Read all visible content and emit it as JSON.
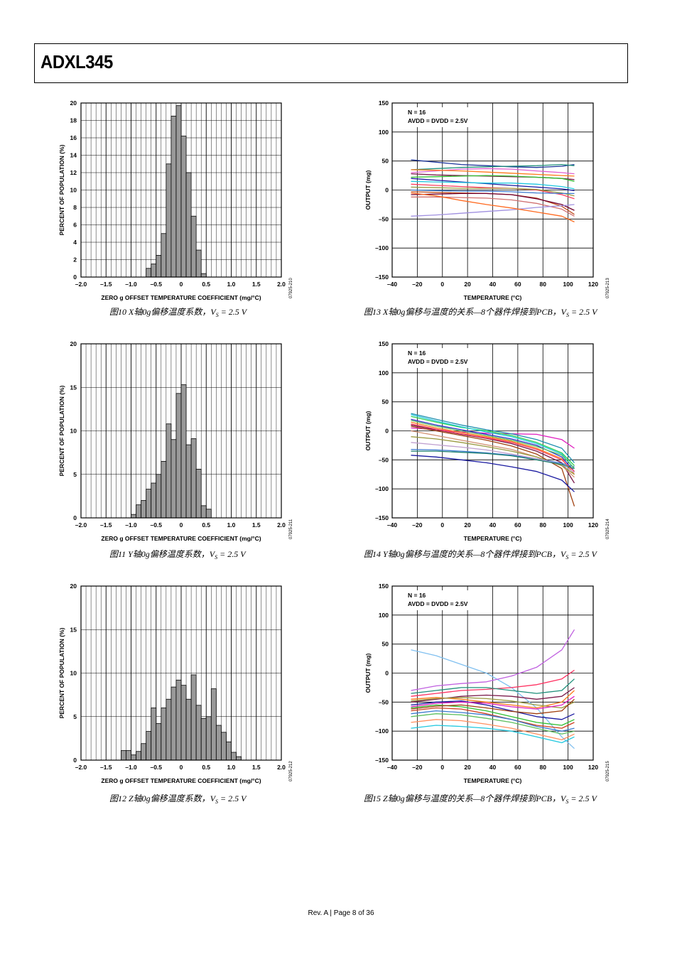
{
  "header": {
    "title": "ADXL345"
  },
  "footer": {
    "text": "Rev. A | Page 8 of 36"
  },
  "histograms": [
    {
      "id": "fig10",
      "caption_main": "图10 X轴0g偏移温度系数，",
      "caption_v": "V",
      "caption_sub": "S",
      "caption_tail": " = 2.5 V",
      "figure_id": "07925-210",
      "chart_data": {
        "type": "bar",
        "title": "",
        "xlabel": "ZERO g OFFSET TEMPERATURE COEFFICIENT (mg/°C)",
        "ylabel": "PERCENT OF POPULATION (%)",
        "xlim": [
          -2.0,
          2.0
        ],
        "ylim": [
          0,
          20
        ],
        "xticks": [
          "–2.0",
          "–1.5",
          "–1.0",
          "–0.5",
          "0",
          "0.5",
          "1.0",
          "1.5",
          "2.0"
        ],
        "yticks": [
          "0",
          "2",
          "4",
          "6",
          "8",
          "10",
          "12",
          "14",
          "16",
          "18",
          "20"
        ],
        "bin_width": 0.1,
        "bins": [
          -0.65,
          -0.55,
          -0.45,
          -0.35,
          -0.25,
          -0.15,
          -0.05,
          0.05,
          0.15,
          0.25,
          0.35,
          0.45
        ],
        "values": [
          1.0,
          1.5,
          2.5,
          5.0,
          13.0,
          18.5,
          19.7,
          16.2,
          12.0,
          7.0,
          3.1,
          0.4
        ]
      }
    },
    {
      "id": "fig11",
      "caption_main": "图11 Y轴0g偏移温度系数，",
      "caption_v": "V",
      "caption_sub": "S",
      "caption_tail": " = 2.5 V",
      "figure_id": "07925-211",
      "chart_data": {
        "type": "bar",
        "title": "",
        "xlabel": "ZERO g OFFSET TEMPERATURE COEFFICIENT (mg/°C)",
        "ylabel": "PERCENT OF POPULATION (%)",
        "xlim": [
          -2.0,
          2.0
        ],
        "ylim": [
          0,
          20
        ],
        "xticks": [
          "–2.0",
          "–1.5",
          "–1.0",
          "–0.5",
          "0",
          "0.5",
          "1.0",
          "1.5",
          "2.0"
        ],
        "yticks": [
          "0",
          "5",
          "10",
          "15",
          "20"
        ],
        "bin_width": 0.1,
        "bins": [
          -0.95,
          -0.85,
          -0.75,
          -0.65,
          -0.55,
          -0.45,
          -0.35,
          -0.25,
          -0.15,
          -0.05,
          0.05,
          0.15,
          0.25,
          0.35,
          0.45,
          0.55
        ],
        "values": [
          0.4,
          1.5,
          2.0,
          3.3,
          4.0,
          5.0,
          6.5,
          10.8,
          9.0,
          14.3,
          15.3,
          8.4,
          9.1,
          5.6,
          1.4,
          1.0
        ]
      }
    },
    {
      "id": "fig12",
      "caption_main": "图12 Z轴0g偏移温度系数，",
      "caption_v": "V",
      "caption_sub": "S",
      "caption_tail": " = 2.5 V",
      "figure_id": "07925-212",
      "chart_data": {
        "type": "bar",
        "title": "",
        "xlabel": "ZERO g OFFSET TEMPERATURE COEFFICIENT (mg/°C)",
        "ylabel": "PERCENT OF POPULATION (%)",
        "xlim": [
          -2.0,
          2.0
        ],
        "ylim": [
          0,
          20
        ],
        "xticks": [
          "–2.0",
          "–1.5",
          "–1.0",
          "–0.5",
          "0",
          "0.5",
          "1.0",
          "1.5",
          "2.0"
        ],
        "yticks": [
          "0",
          "5",
          "10",
          "15",
          "20"
        ],
        "bin_width": 0.1,
        "bins": [
          -1.15,
          -1.05,
          -0.95,
          -0.85,
          -0.75,
          -0.65,
          -0.55,
          -0.45,
          -0.35,
          -0.25,
          -0.15,
          -0.05,
          0.05,
          0.15,
          0.25,
          0.35,
          0.45,
          0.55,
          0.65,
          0.75,
          0.85,
          0.95,
          1.05,
          1.15
        ],
        "values": [
          1.1,
          1.1,
          0.6,
          1.0,
          1.9,
          3.3,
          6.0,
          4.2,
          6.0,
          7.0,
          8.4,
          9.2,
          8.6,
          7.0,
          9.8,
          6.3,
          4.8,
          5.0,
          8.2,
          4.0,
          3.2,
          2.1,
          0.9,
          0.4
        ]
      }
    }
  ],
  "linecharts": [
    {
      "id": "fig13",
      "caption_main": "图13 X轴0g偏移与温度的关系—8个器件焊接到PCB，",
      "caption_v": "V",
      "caption_sub": "S",
      "caption_tail": " = 2.5 V",
      "figure_id": "07925-213",
      "annotations": [
        "N = 16",
        "AVDD = DVDD = 2.5V"
      ],
      "chart_data": {
        "type": "line",
        "title": "",
        "xlabel": "TEMPERATURE (°C)",
        "ylabel": "OUTPUT (mg)",
        "xlim": [
          -40,
          120
        ],
        "ylim": [
          -150,
          150
        ],
        "xticks": [
          "–40",
          "–20",
          "0",
          "20",
          "40",
          "60",
          "80",
          "100",
          "120"
        ],
        "yticks": [
          "–150",
          "–100",
          "–50",
          "0",
          "50",
          "100",
          "150"
        ],
        "x": [
          -25,
          -5,
          15,
          35,
          55,
          75,
          95,
          105
        ],
        "series": [
          {
            "color": "#1a3399",
            "values": [
              52,
              48,
              44,
              42,
              40,
              39,
              41,
              44
            ]
          },
          {
            "color": "#1f8f7a",
            "values": [
              35,
              37,
              39,
              40,
              41,
              42,
              44,
              42
            ]
          },
          {
            "color": "#e060d0",
            "values": [
              30,
              33,
              36,
              37,
              36,
              33,
              30,
              28
            ]
          },
          {
            "color": "#ff7a1a",
            "values": [
              35,
              34,
              33,
              31,
              29,
              27,
              25,
              24
            ]
          },
          {
            "color": "#7a1a4a",
            "values": [
              28,
              26,
              25,
              24,
              23,
              22,
              20,
              18
            ]
          },
          {
            "color": "#30c030",
            "values": [
              22,
              23,
              24,
              25,
              24,
              22,
              20,
              15
            ]
          },
          {
            "color": "#1a1aa0",
            "values": [
              20,
              17,
              14,
              11,
              8,
              5,
              2,
              -1
            ]
          },
          {
            "color": "#20c8e0",
            "values": [
              15,
              14,
              13,
              12,
              12,
              10,
              6,
              2
            ]
          },
          {
            "color": "#ff4060",
            "values": [
              10,
              8,
              6,
              4,
              3,
              0,
              -8,
              -15
            ]
          },
          {
            "color": "#9a9a40",
            "values": [
              5,
              4,
              3,
              3,
              3,
              1,
              -5,
              -10
            ]
          },
          {
            "color": "#3a7ad0",
            "values": [
              0,
              -1,
              -2,
              -2,
              -3,
              -5,
              -6,
              -6
            ]
          },
          {
            "color": "#c05020",
            "values": [
              -3,
              -4,
              -5,
              -6,
              -8,
              -14,
              -28,
              -42
            ]
          },
          {
            "color": "#700030",
            "values": [
              -8,
              -7,
              -6,
              -6,
              -8,
              -15,
              -25,
              -35
            ]
          },
          {
            "color": "#d07070",
            "values": [
              -12,
              -12,
              -13,
              -14,
              -17,
              -23,
              -33,
              -45
            ]
          },
          {
            "color": "#a090e0",
            "values": [
              -45,
              -43,
              -40,
              -37,
              -34,
              -30,
              -27,
              -25
            ]
          },
          {
            "color": "#ff6a20",
            "values": [
              -5,
              -10,
              -18,
              -25,
              -31,
              -38,
              -45,
              -55
            ]
          }
        ]
      }
    },
    {
      "id": "fig14",
      "caption_main": "图14 Y轴0g偏移与温度的关系—8个器件焊接到PCB，",
      "caption_v": "V",
      "caption_sub": "S",
      "caption_tail": " = 2.5 V",
      "figure_id": "07925-214",
      "annotations": [
        "N = 16",
        "AVDD = DVDD = 2.5V"
      ],
      "chart_data": {
        "type": "line",
        "title": "",
        "xlabel": "TEMPERATURE (°C)",
        "ylabel": "OUTPUT (mg)",
        "xlim": [
          -40,
          120
        ],
        "ylim": [
          -150,
          150
        ],
        "xticks": [
          "–40",
          "–20",
          "0",
          "20",
          "40",
          "60",
          "80",
          "100",
          "120"
        ],
        "yticks": [
          "–150",
          "–100",
          "–50",
          "0",
          "50",
          "100",
          "150"
        ],
        "x": [
          -25,
          -5,
          15,
          35,
          55,
          75,
          95,
          105
        ],
        "series": [
          {
            "color": "#e020c0",
            "values": [
              5,
              2,
              -2,
              -4,
              -5,
              -6,
              -15,
              -30
            ]
          },
          {
            "color": "#1f8fb0",
            "values": [
              30,
              20,
              10,
              2,
              -5,
              -15,
              -30,
              -55
            ]
          },
          {
            "color": "#30d050",
            "values": [
              25,
              15,
              6,
              0,
              -8,
              -20,
              -38,
              -60
            ]
          },
          {
            "color": "#20c8e0",
            "values": [
              28,
              17,
              7,
              -2,
              -10,
              -22,
              -40,
              -65
            ]
          },
          {
            "color": "#3030d0",
            "values": [
              20,
              10,
              2,
              -6,
              -14,
              -25,
              -45,
              -70
            ]
          },
          {
            "color": "#ff7a1a",
            "values": [
              15,
              5,
              -3,
              -10,
              -18,
              -30,
              -48,
              -75
            ]
          },
          {
            "color": "#7a1a4a",
            "values": [
              10,
              2,
              -6,
              -13,
              -22,
              -35,
              -55,
              -90
            ]
          },
          {
            "color": "#a04010",
            "values": [
              8,
              0,
              -8,
              -16,
              -26,
              -40,
              -65,
              -130
            ]
          },
          {
            "color": "#d09070",
            "values": [
              0,
              -8,
              -16,
              -24,
              -32,
              -45,
              -60,
              -80
            ]
          },
          {
            "color": "#9a9a40",
            "values": [
              -10,
              -14,
              -20,
              -27,
              -35,
              -45,
              -60,
              -75
            ]
          },
          {
            "color": "#3a7ad0",
            "values": [
              -32,
              -33,
              -35,
              -38,
              -42,
              -48,
              -56,
              -62
            ]
          },
          {
            "color": "#1a1aa0",
            "values": [
              -42,
              -45,
              -50,
              -55,
              -62,
              -70,
              -85,
              -105
            ]
          },
          {
            "color": "#ff4060",
            "values": [
              12,
              3,
              -5,
              -12,
              -20,
              -32,
              -50,
              -70
            ]
          },
          {
            "color": "#60c060",
            "values": [
              18,
              8,
              0,
              -8,
              -16,
              -27,
              -42,
              -65
            ]
          },
          {
            "color": "#c0a0d0",
            "values": [
              -20,
              -24,
              -28,
              -33,
              -40,
              -48,
              -58,
              -72
            ]
          },
          {
            "color": "#208070",
            "values": [
              -35,
              -35,
              -37,
              -39,
              -43,
              -50,
              -58,
              -65
            ]
          }
        ]
      }
    },
    {
      "id": "fig15",
      "caption_main": "图15 Z轴0g偏移与温度的关系—8个器件焊接到PCB，",
      "caption_v": "V",
      "caption_sub": "S",
      "caption_tail": " = 2.5 V",
      "figure_id": "07925-215",
      "annotations": [
        "N = 16",
        "AVDD = DVDD = 2.5V"
      ],
      "chart_data": {
        "type": "line",
        "title": "",
        "xlabel": "TEMPERATURE (°C)",
        "ylabel": "OUTPUT (mg)",
        "xlim": [
          -40,
          120
        ],
        "ylim": [
          -150,
          150
        ],
        "xticks": [
          "–40",
          "–20",
          "0",
          "20",
          "40",
          "60",
          "80",
          "100",
          "120"
        ],
        "yticks": [
          "–150",
          "–100",
          "–50",
          "0",
          "50",
          "100",
          "150"
        ],
        "x": [
          -25,
          -5,
          15,
          35,
          55,
          75,
          95,
          105
        ],
        "series": [
          {
            "color": "#80c0f0",
            "values": [
              40,
              30,
              15,
              0,
              -25,
              -60,
              -110,
              -130
            ]
          },
          {
            "color": "#c060e0",
            "values": [
              -30,
              -22,
              -18,
              -15,
              -5,
              10,
              40,
              75
            ]
          },
          {
            "color": "#ff3060",
            "values": [
              -40,
              -35,
              -30,
              -28,
              -25,
              -20,
              -10,
              5
            ]
          },
          {
            "color": "#1f8f7a",
            "values": [
              -35,
              -30,
              -25,
              -25,
              -30,
              -35,
              -30,
              -10
            ]
          },
          {
            "color": "#ff7a1a",
            "values": [
              -45,
              -42,
              -45,
              -50,
              -55,
              -60,
              -50,
              -30
            ]
          },
          {
            "color": "#1a1aa0",
            "values": [
              -55,
              -50,
              -48,
              -55,
              -65,
              -75,
              -80,
              -70
            ]
          },
          {
            "color": "#30c030",
            "values": [
              -60,
              -55,
              -58,
              -65,
              -75,
              -85,
              -90,
              -80
            ]
          },
          {
            "color": "#d04020",
            "values": [
              -65,
              -60,
              -62,
              -70,
              -80,
              -90,
              -95,
              -85
            ]
          },
          {
            "color": "#20c8e0",
            "values": [
              -95,
              -90,
              -92,
              -95,
              -100,
              -110,
              -120,
              -110
            ]
          },
          {
            "color": "#ff9060",
            "values": [
              -85,
              -80,
              -82,
              -88,
              -95,
              -105,
              -115,
              -105
            ]
          },
          {
            "color": "#7a1a4a",
            "values": [
              -50,
              -45,
              -40,
              -38,
              -40,
              -45,
              -40,
              -25
            ]
          },
          {
            "color": "#3a7ad0",
            "values": [
              -70,
              -65,
              -68,
              -72,
              -80,
              -92,
              -100,
              -95
            ]
          },
          {
            "color": "#9a9a40",
            "values": [
              -48,
              -44,
              -42,
              -44,
              -48,
              -55,
              -60,
              -50
            ]
          },
          {
            "color": "#e020c0",
            "values": [
              -58,
              -52,
              -50,
              -52,
              -58,
              -62,
              -55,
              -40
            ]
          },
          {
            "color": "#a04010",
            "values": [
              -62,
              -57,
              -55,
              -60,
              -66,
              -70,
              -65,
              -45
            ]
          },
          {
            "color": "#60c060",
            "values": [
              -75,
              -70,
              -72,
              -78,
              -85,
              -95,
              -105,
              -100
            ]
          }
        ]
      }
    }
  ]
}
